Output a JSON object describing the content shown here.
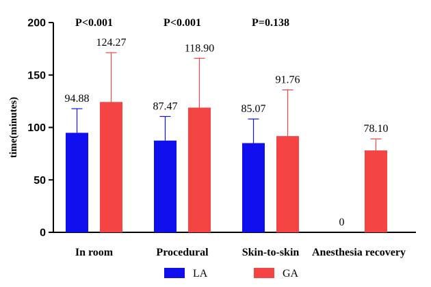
{
  "chart_data": {
    "type": "bar",
    "ylabel": "time(minutes)",
    "xlabel": "",
    "ylim": [
      0,
      200
    ],
    "yticks": [
      0,
      50,
      100,
      150,
      200
    ],
    "categories": [
      "In room",
      "Procedural",
      "Skin-to-skin",
      "Anesthesia recovery"
    ],
    "series": [
      {
        "name": "LA",
        "color": "#1010ee",
        "values": [
          94.88,
          87.47,
          85.07,
          0
        ],
        "errors": [
          23,
          23,
          23,
          null
        ],
        "labels": [
          "94.88",
          "87.47",
          "85.07",
          "0"
        ]
      },
      {
        "name": "GA",
        "color": "#f54444",
        "values": [
          124.27,
          118.9,
          91.76,
          78.1
        ],
        "errors": [
          47,
          47,
          44,
          11
        ],
        "labels": [
          "124.27",
          "118.90",
          "91.76",
          "78.10"
        ]
      }
    ],
    "annotations": [
      "P<0.001",
      "P<0.001",
      "P=0.138",
      ""
    ],
    "legend_position": "bottom"
  }
}
